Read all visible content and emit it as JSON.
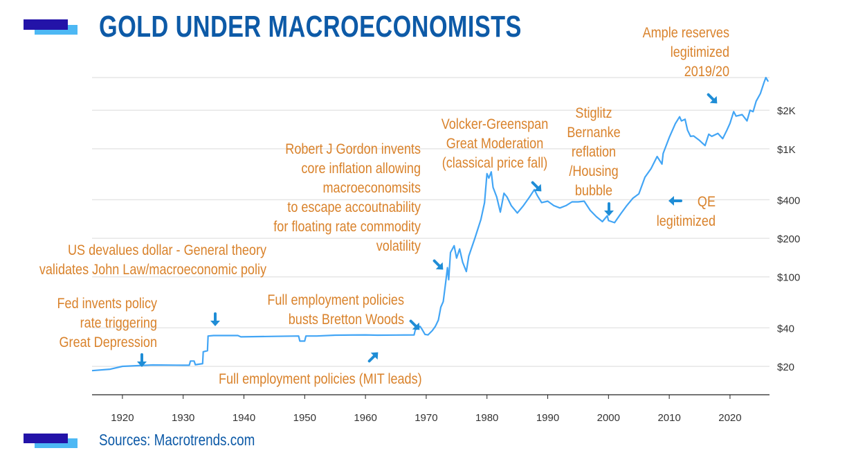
{
  "title": "GOLD UNDER MACROECONOMISTS",
  "source": "Sources: Macrotrends.com",
  "colors": {
    "title": "#0d5aa7",
    "line": "#42a5f5",
    "annotation": "#d9822b",
    "arrow": "#1f8dd6",
    "accent_dark": "#2313a8",
    "accent_light": "#4db8f4",
    "grid": "#e6e6e6",
    "axis_text": "#333333"
  },
  "chart_data": {
    "type": "line",
    "scale_y": "log",
    "xlim": [
      1915,
      2026.5
    ],
    "ylim": [
      12,
      3600
    ],
    "grid": "horizontal",
    "x_ticks": [
      1920,
      1930,
      1940,
      1950,
      1960,
      1970,
      1980,
      1990,
      2000,
      2010,
      2020
    ],
    "y_ticks": [
      {
        "value": 20,
        "label": "$20"
      },
      {
        "value": 40,
        "label": "$40"
      },
      {
        "value": 100,
        "label": "$100"
      },
      {
        "value": 200,
        "label": "$200"
      },
      {
        "value": 400,
        "label": "$400"
      },
      {
        "value": 1000,
        "label": "$1K"
      },
      {
        "value": 2000,
        "label": "$2K"
      }
    ],
    "gridlines": [
      20,
      40,
      100,
      200,
      400,
      1000,
      2000,
      3600
    ],
    "series": [
      {
        "points": [
          [
            1915,
            18.5
          ],
          [
            1918,
            19.0
          ],
          [
            1920,
            20.0
          ],
          [
            1925,
            20.5
          ],
          [
            1930,
            20.4
          ],
          [
            1931,
            20.4
          ],
          [
            1931.2,
            22.0
          ],
          [
            1931.8,
            22.0
          ],
          [
            1932,
            20.6
          ],
          [
            1933.2,
            21.0
          ],
          [
            1933.3,
            26.0
          ],
          [
            1934,
            26.5
          ],
          [
            1934.1,
            34.5
          ],
          [
            1935,
            34.8
          ],
          [
            1939,
            34.8
          ],
          [
            1939.5,
            34.0
          ],
          [
            1945,
            34.3
          ],
          [
            1949,
            34.5
          ],
          [
            1949.2,
            31.5
          ],
          [
            1950,
            31.5
          ],
          [
            1950.2,
            34.5
          ],
          [
            1952,
            34.5
          ],
          [
            1955,
            35.0
          ],
          [
            1960,
            35.2
          ],
          [
            1962,
            35.0
          ],
          [
            1965,
            35.1
          ],
          [
            1968,
            35.2
          ],
          [
            1968.2,
            38.5
          ],
          [
            1969,
            41.0
          ],
          [
            1969.3,
            39.0
          ],
          [
            1969.8,
            35.5
          ],
          [
            1970.3,
            35.2
          ],
          [
            1971,
            38.0
          ],
          [
            1971.5,
            41.0
          ],
          [
            1972,
            46.0
          ],
          [
            1972.4,
            58.0
          ],
          [
            1972.8,
            64.0
          ],
          [
            1973.2,
            90.0
          ],
          [
            1973.5,
            118.0
          ],
          [
            1973.7,
            95.0
          ],
          [
            1974,
            155.0
          ],
          [
            1974.6,
            175.0
          ],
          [
            1975,
            140.0
          ],
          [
            1975.5,
            165.0
          ],
          [
            1976,
            130.0
          ],
          [
            1976.6,
            110.0
          ],
          [
            1977,
            145.0
          ],
          [
            1978,
            200.0
          ],
          [
            1979,
            280.0
          ],
          [
            1979.6,
            380.0
          ],
          [
            1980,
            640.0
          ],
          [
            1980.3,
            590.0
          ],
          [
            1980.7,
            660.0
          ],
          [
            1981,
            500.0
          ],
          [
            1981.6,
            420.0
          ],
          [
            1982.2,
            320.0
          ],
          [
            1982.8,
            450.0
          ],
          [
            1983.3,
            420.0
          ],
          [
            1984,
            360.0
          ],
          [
            1985,
            315.0
          ],
          [
            1986,
            360.0
          ],
          [
            1987,
            420.0
          ],
          [
            1987.8,
            480.0
          ],
          [
            1988.3,
            430.0
          ],
          [
            1989,
            380.0
          ],
          [
            1990,
            390.0
          ],
          [
            1991,
            360.0
          ],
          [
            1992,
            345.0
          ],
          [
            1993,
            360.0
          ],
          [
            1994,
            385.0
          ],
          [
            1995,
            385.0
          ],
          [
            1996,
            390.0
          ],
          [
            1997,
            330.0
          ],
          [
            1998,
            295.0
          ],
          [
            1999,
            270.0
          ],
          [
            1999.8,
            300.0
          ],
          [
            2000,
            275.0
          ],
          [
            2001,
            265.0
          ],
          [
            2002,
            310.0
          ],
          [
            2003,
            360.0
          ],
          [
            2004,
            410.0
          ],
          [
            2005,
            445.0
          ],
          [
            2006,
            600.0
          ],
          [
            2007,
            700.0
          ],
          [
            2008,
            870.0
          ],
          [
            2008.8,
            760.0
          ],
          [
            2009,
            920.0
          ],
          [
            2010,
            1225.0
          ],
          [
            2011,
            1570.0
          ],
          [
            2011.7,
            1780.0
          ],
          [
            2012,
            1650.0
          ],
          [
            2012.6,
            1700.0
          ],
          [
            2013,
            1400.0
          ],
          [
            2013.5,
            1250.0
          ],
          [
            2014,
            1260.0
          ],
          [
            2015,
            1160.0
          ],
          [
            2015.9,
            1060.0
          ],
          [
            2016.5,
            1300.0
          ],
          [
            2017,
            1250.0
          ],
          [
            2018,
            1320.0
          ],
          [
            2018.8,
            1200.0
          ],
          [
            2019.5,
            1400.0
          ],
          [
            2020,
            1580.0
          ],
          [
            2020.6,
            1950.0
          ],
          [
            2021,
            1800.0
          ],
          [
            2022,
            1850.0
          ],
          [
            2022.8,
            1650.0
          ],
          [
            2023.3,
            2000.0
          ],
          [
            2023.8,
            1950.0
          ],
          [
            2024.3,
            2350.0
          ],
          [
            2025,
            2700.0
          ],
          [
            2025.6,
            3300.0
          ],
          [
            2025.9,
            3600.0
          ],
          [
            2026.3,
            3350.0
          ]
        ]
      }
    ],
    "annotations": [
      {
        "lines": [
          "Ample reserves",
          "legitimized",
          "2019/20"
        ]
      },
      {
        "lines": [
          "Stiglitz",
          "Bernanke",
          "reflation",
          "/Housing",
          "bubble"
        ]
      },
      {
        "lines": [
          "Volcker-Greenspan",
          "Great Moderation",
          "(classical price fall)"
        ]
      },
      {
        "lines": [
          "Robert J Gordon invents",
          "core inflation allowing",
          "macroeconomsits",
          "to escape accoutnability",
          "for floating rate commodity",
          "volatility"
        ]
      },
      {
        "lines": [
          "US devalues dollar - General theory",
          "validates John Law/macroeconomic poliy"
        ]
      },
      {
        "lines": [
          "Fed invents policy",
          "rate triggering",
          "Great Depression"
        ]
      },
      {
        "lines": [
          "Full employment policies",
          "busts Bretton Woods"
        ]
      },
      {
        "lines": [
          "Full employment policies (MIT leads)"
        ]
      },
      {
        "lines": [
          "QE",
          "legitimized"
        ]
      }
    ]
  }
}
